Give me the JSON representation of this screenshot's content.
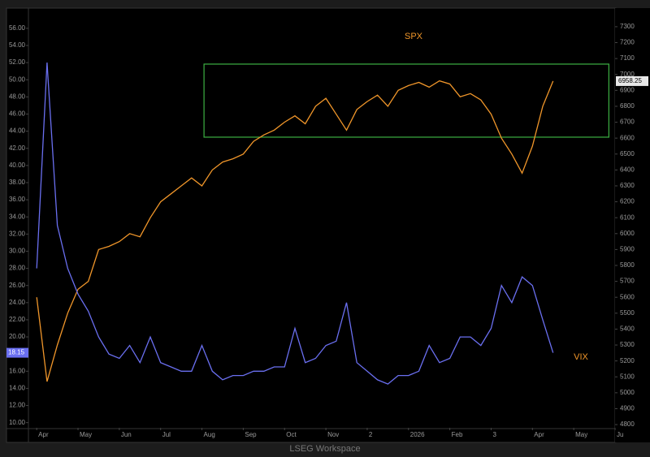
{
  "chart_data": {
    "type": "line",
    "footer": "LSEG Workspace",
    "x": [
      0,
      0.25,
      0.5,
      0.75,
      1,
      1.25,
      1.5,
      1.75,
      2,
      2.25,
      2.5,
      2.75,
      3,
      3.25,
      3.5,
      3.75,
      4,
      4.25,
      4.5,
      4.75,
      5,
      5.25,
      5.5,
      5.75,
      6,
      6.25,
      6.5,
      6.75,
      7,
      7.25,
      7.5,
      7.75,
      8,
      8.25,
      8.5,
      8.75,
      9,
      9.25,
      9.5,
      9.75,
      10,
      10.25,
      10.5,
      10.75,
      11,
      11.25,
      11.5,
      11.75,
      12,
      12.25,
      12.5
    ],
    "series": [
      {
        "name": "SPX",
        "color": "#f0962a",
        "axis": "y2",
        "values": [
          5600,
          5070,
          5300,
          5500,
          5650,
          5700,
          5900,
          5920,
          5950,
          6000,
          5980,
          6100,
          6200,
          6250,
          6300,
          6350,
          6300,
          6400,
          6450,
          6470,
          6500,
          6580,
          6620,
          6650,
          6700,
          6740,
          6690,
          6800,
          6850,
          6750,
          6650,
          6780,
          6830,
          6870,
          6800,
          6900,
          6930,
          6950,
          6920,
          6960,
          6940,
          6860,
          6880,
          6840,
          6750,
          6600,
          6500,
          6380,
          6550,
          6800,
          6958.25
        ]
      },
      {
        "name": "VIX",
        "color": "#6a6ff0",
        "values": [
          28,
          52,
          33,
          28,
          25,
          23,
          20,
          18,
          17.5,
          19,
          17,
          20,
          17,
          16.5,
          16,
          16,
          19,
          16,
          15,
          15.5,
          15.5,
          16,
          16,
          16.5,
          16.5,
          21,
          17,
          17.5,
          19,
          19.5,
          24,
          17,
          16,
          15,
          14.5,
          15.5,
          15.5,
          16,
          19,
          17,
          17.5,
          20,
          20,
          19,
          21,
          26,
          24,
          27,
          26,
          22,
          18.15
        ]
      }
    ],
    "xlim": [
      -0.2,
      14
    ],
    "xticks": [
      {
        "value": 0,
        "label": "Apr"
      },
      {
        "value": 1,
        "label": "May"
      },
      {
        "value": 2,
        "label": "Jun"
      },
      {
        "value": 3,
        "label": "Jul"
      },
      {
        "value": 4,
        "label": "Aug"
      },
      {
        "value": 5,
        "label": "Sep"
      },
      {
        "value": 6,
        "label": "Oct"
      },
      {
        "value": 7,
        "label": "Nov"
      },
      {
        "value": 8,
        "label": "2"
      },
      {
        "value": 9,
        "label": "2026"
      },
      {
        "value": 10,
        "label": "Feb"
      },
      {
        "value": 11,
        "label": "3"
      },
      {
        "value": 12,
        "label": "Apr"
      },
      {
        "value": 13,
        "label": "May"
      },
      {
        "value": 14,
        "label": "Ju"
      }
    ],
    "ylim": [
      9.4,
      57.6
    ],
    "yticks": [
      {
        "value": 10,
        "label": "10.00"
      },
      {
        "value": 12,
        "label": "12.00"
      },
      {
        "value": 14,
        "label": "14.00"
      },
      {
        "value": 16,
        "label": "16.00"
      },
      {
        "value": 18,
        "label": "18.00"
      },
      {
        "value": 20,
        "label": "20.00"
      },
      {
        "value": 22,
        "label": "22.00"
      },
      {
        "value": 24,
        "label": "24.00"
      },
      {
        "value": 26,
        "label": "26.00"
      },
      {
        "value": 28,
        "label": "28.00"
      },
      {
        "value": 30,
        "label": "30.00"
      },
      {
        "value": 32,
        "label": "32.00"
      },
      {
        "value": 34,
        "label": "34.00"
      },
      {
        "value": 36,
        "label": "36.00"
      },
      {
        "value": 38,
        "label": "38.00"
      },
      {
        "value": 40,
        "label": "40.00"
      },
      {
        "value": 42,
        "label": "42.00"
      },
      {
        "value": 44,
        "label": "44.00"
      },
      {
        "value": 46,
        "label": "46.00"
      },
      {
        "value": 48,
        "label": "48.00"
      },
      {
        "value": 50,
        "label": "50.00"
      },
      {
        "value": 52,
        "label": "52.00"
      },
      {
        "value": 54,
        "label": "54.00"
      },
      {
        "value": 56,
        "label": "56.00"
      }
    ],
    "y2lim": [
      4780,
      7376
    ],
    "y2ticks": [
      4800,
      4900,
      5000,
      5100,
      5200,
      5300,
      5400,
      5500,
      5600,
      5700,
      5800,
      5900,
      6000,
      6100,
      6200,
      6300,
      6400,
      6500,
      6600,
      6700,
      6800,
      6900,
      7000,
      7100,
      7200,
      7300
    ],
    "grid": false,
    "box": {
      "color": "#3cb043",
      "xlim": [
        4.05,
        13.85
      ],
      "y2lim": [
        6606,
        7065
      ]
    }
  }
}
